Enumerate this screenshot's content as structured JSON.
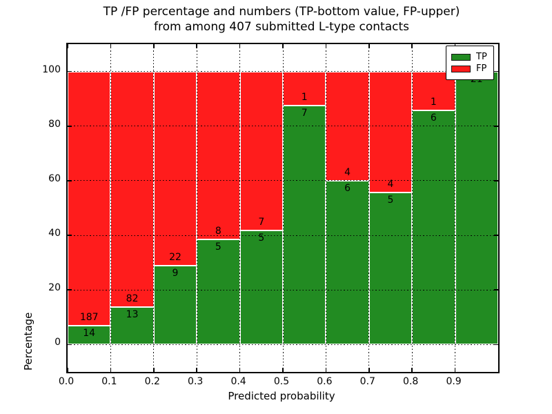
{
  "figure": {
    "title_line1": "TP /FP percentage and numbers (TP-bottom value, FP-upper)",
    "title_line2": "from among 407 submitted L-type contacts",
    "xlabel": "Predicted probability",
    "ylabel": "Percentage"
  },
  "legend": {
    "position": "upper right",
    "items": [
      {
        "label": "TP",
        "color": "#228b22"
      },
      {
        "label": "FP",
        "color": "#ff1c1c"
      }
    ]
  },
  "chart_data": {
    "type": "bar",
    "stacked": true,
    "normalized_to_percent": true,
    "title": "TP /FP percentage and numbers (TP-bottom value, FP-upper) from among 407 submitted L-type contacts",
    "xlabel": "Predicted probability",
    "ylabel": "Percentage",
    "total_contacts": 407,
    "xlim": [
      0.0,
      1.0
    ],
    "ylim": [
      -10,
      110
    ],
    "x_tick_labels": [
      "0.0",
      "0.1",
      "0.2",
      "0.3",
      "0.4",
      "0.5",
      "0.6",
      "0.7",
      "0.8",
      "0.9"
    ],
    "y_tick_values": [
      0,
      20,
      40,
      60,
      80,
      100
    ],
    "y_tick_labels": [
      "0",
      "20",
      "40",
      "60",
      "80",
      "100"
    ],
    "grid": true,
    "grid_style": "dotted",
    "bar_edge_color": "#ffffff",
    "series": [
      {
        "name": "TP",
        "color": "#228b22"
      },
      {
        "name": "FP",
        "color": "#ff1c1c"
      }
    ],
    "bins": [
      {
        "range": "0.0-0.1",
        "tp_count": 14,
        "fp_count": 187,
        "tp_pct": 6.97,
        "fp_pct": 93.03
      },
      {
        "range": "0.1-0.2",
        "tp_count": 13,
        "fp_count": 82,
        "tp_pct": 13.68,
        "fp_pct": 86.32
      },
      {
        "range": "0.2-0.3",
        "tp_count": 9,
        "fp_count": 22,
        "tp_pct": 29.03,
        "fp_pct": 70.97
      },
      {
        "range": "0.3-0.4",
        "tp_count": 5,
        "fp_count": 8,
        "tp_pct": 38.46,
        "fp_pct": 61.54
      },
      {
        "range": "0.4-0.5",
        "tp_count": 5,
        "fp_count": 7,
        "tp_pct": 41.67,
        "fp_pct": 58.33
      },
      {
        "range": "0.5-0.6",
        "tp_count": 7,
        "fp_count": 1,
        "tp_pct": 87.5,
        "fp_pct": 12.5
      },
      {
        "range": "0.6-0.7",
        "tp_count": 6,
        "fp_count": 4,
        "tp_pct": 60.0,
        "fp_pct": 40.0
      },
      {
        "range": "0.7-0.8",
        "tp_count": 5,
        "fp_count": 4,
        "tp_pct": 55.56,
        "fp_pct": 44.44
      },
      {
        "range": "0.8-0.9",
        "tp_count": 6,
        "fp_count": 1,
        "tp_pct": 85.71,
        "fp_pct": 14.29
      },
      {
        "range": "0.9-1.0",
        "tp_count": 21,
        "fp_count": 0,
        "tp_pct": 100.0,
        "fp_pct": 0.0
      }
    ]
  }
}
